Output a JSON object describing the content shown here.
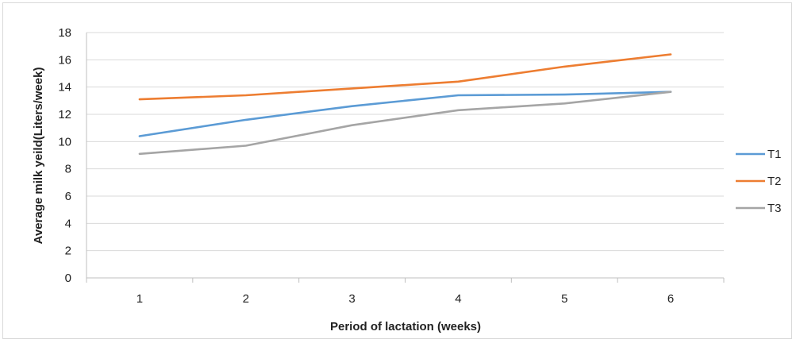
{
  "chart_data": {
    "type": "line",
    "title": "",
    "xlabel": "Period of lactation (weeks)",
    "ylabel": "Average milk yeild(Liters/week)",
    "categories": [
      "1",
      "2",
      "3",
      "4",
      "5",
      "6"
    ],
    "ylim": [
      0,
      18
    ],
    "yticks": [
      0,
      2,
      4,
      6,
      8,
      10,
      12,
      14,
      16,
      18
    ],
    "grid": true,
    "legend_position": "right",
    "series": [
      {
        "name": "T1",
        "color": "#5b9bd5",
        "values": [
          10.4,
          11.6,
          12.6,
          13.4,
          13.45,
          13.65
        ]
      },
      {
        "name": "T2",
        "color": "#ed7d31",
        "values": [
          13.1,
          13.4,
          13.9,
          14.4,
          15.5,
          16.4
        ]
      },
      {
        "name": "T3",
        "color": "#a5a5a5",
        "values": [
          9.1,
          9.7,
          11.2,
          12.3,
          12.8,
          13.65
        ]
      }
    ]
  }
}
